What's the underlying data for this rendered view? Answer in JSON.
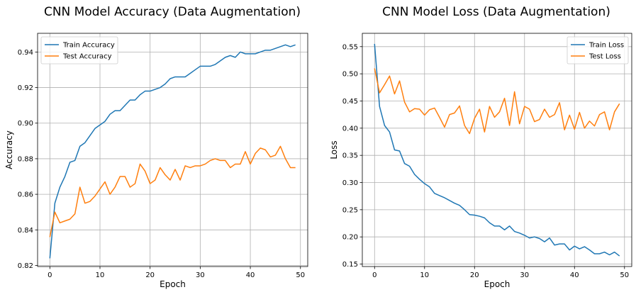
{
  "chart_data": [
    {
      "type": "line",
      "title": "CNN Model Accuracy (Data Augmentation)",
      "xlabel": "Epoch",
      "ylabel": "Accuracy",
      "xlim": [
        -2.45,
        51.45
      ],
      "ylim": [
        0.8194,
        0.9505
      ],
      "xticks": [
        0,
        10,
        20,
        30,
        40,
        50
      ],
      "yticks": [
        0.82,
        0.84,
        0.86,
        0.88,
        0.9,
        0.92,
        0.94
      ],
      "ytick_labels": [
        "0.82",
        "0.84",
        "0.86",
        "0.88",
        "0.90",
        "0.92",
        "0.94"
      ],
      "grid": true,
      "legend_position": "upper-left",
      "x": [
        0,
        1,
        2,
        3,
        4,
        5,
        6,
        7,
        8,
        9,
        10,
        11,
        12,
        13,
        14,
        15,
        16,
        17,
        18,
        19,
        20,
        21,
        22,
        23,
        24,
        25,
        26,
        27,
        28,
        29,
        30,
        31,
        32,
        33,
        34,
        35,
        36,
        37,
        38,
        39,
        40,
        41,
        42,
        43,
        44,
        45,
        46,
        47,
        48,
        49
      ],
      "series": [
        {
          "name": "Train Accuracy",
          "color": "#1f77b4",
          "values": [
            0.824,
            0.855,
            0.864,
            0.87,
            0.878,
            0.879,
            0.887,
            0.889,
            0.893,
            0.897,
            0.899,
            0.901,
            0.905,
            0.907,
            0.907,
            0.91,
            0.913,
            0.913,
            0.916,
            0.918,
            0.918,
            0.919,
            0.92,
            0.922,
            0.925,
            0.926,
            0.926,
            0.926,
            0.928,
            0.93,
            0.932,
            0.932,
            0.932,
            0.933,
            0.935,
            0.937,
            0.938,
            0.937,
            0.94,
            0.939,
            0.939,
            0.939,
            0.94,
            0.941,
            0.941,
            0.942,
            0.943,
            0.944,
            0.943,
            0.944
          ]
        },
        {
          "name": "Test Accuracy",
          "color": "#ff7f0e",
          "values": [
            0.836,
            0.85,
            0.844,
            0.845,
            0.846,
            0.849,
            0.864,
            0.855,
            0.856,
            0.859,
            0.863,
            0.867,
            0.86,
            0.864,
            0.87,
            0.87,
            0.864,
            0.866,
            0.877,
            0.873,
            0.866,
            0.868,
            0.875,
            0.871,
            0.868,
            0.874,
            0.868,
            0.876,
            0.875,
            0.876,
            0.876,
            0.877,
            0.879,
            0.88,
            0.879,
            0.879,
            0.875,
            0.877,
            0.877,
            0.884,
            0.877,
            0.883,
            0.886,
            0.885,
            0.881,
            0.882,
            0.887,
            0.88,
            0.875,
            0.875
          ]
        }
      ]
    },
    {
      "type": "line",
      "title": "CNN Model Loss (Data Augmentation)",
      "xlabel": "Epoch",
      "ylabel": "Loss",
      "xlim": [
        -2.45,
        51.45
      ],
      "ylim": [
        0.1455,
        0.5745
      ],
      "xticks": [
        0,
        10,
        20,
        30,
        40,
        50
      ],
      "yticks": [
        0.15,
        0.2,
        0.25,
        0.3,
        0.35,
        0.4,
        0.45,
        0.5,
        0.55
      ],
      "ytick_labels": [
        "0.15",
        "0.20",
        "0.25",
        "0.30",
        "0.35",
        "0.40",
        "0.45",
        "0.50",
        "0.55"
      ],
      "grid": true,
      "legend_position": "upper-right",
      "x": [
        0,
        1,
        2,
        3,
        4,
        5,
        6,
        7,
        8,
        9,
        10,
        11,
        12,
        13,
        14,
        15,
        16,
        17,
        18,
        19,
        20,
        21,
        22,
        23,
        24,
        25,
        26,
        27,
        28,
        29,
        30,
        31,
        32,
        33,
        34,
        35,
        36,
        37,
        38,
        39,
        40,
        41,
        42,
        43,
        44,
        45,
        46,
        47,
        48,
        49
      ],
      "series": [
        {
          "name": "Train Loss",
          "color": "#1f77b4",
          "values": [
            0.555,
            0.44,
            0.405,
            0.393,
            0.36,
            0.358,
            0.335,
            0.33,
            0.315,
            0.306,
            0.298,
            0.292,
            0.28,
            0.276,
            0.272,
            0.267,
            0.262,
            0.258,
            0.25,
            0.241,
            0.24,
            0.238,
            0.235,
            0.226,
            0.22,
            0.22,
            0.213,
            0.22,
            0.21,
            0.207,
            0.203,
            0.198,
            0.2,
            0.197,
            0.191,
            0.198,
            0.185,
            0.187,
            0.187,
            0.176,
            0.183,
            0.178,
            0.182,
            0.176,
            0.169,
            0.169,
            0.172,
            0.167,
            0.172,
            0.165
          ]
        },
        {
          "name": "Test Loss",
          "color": "#ff7f0e",
          "values": [
            0.51,
            0.465,
            0.48,
            0.496,
            0.463,
            0.487,
            0.448,
            0.43,
            0.436,
            0.435,
            0.424,
            0.434,
            0.437,
            0.42,
            0.402,
            0.425,
            0.428,
            0.441,
            0.405,
            0.39,
            0.418,
            0.435,
            0.393,
            0.44,
            0.42,
            0.43,
            0.455,
            0.405,
            0.467,
            0.408,
            0.44,
            0.435,
            0.412,
            0.416,
            0.435,
            0.42,
            0.425,
            0.447,
            0.397,
            0.424,
            0.398,
            0.429,
            0.4,
            0.413,
            0.404,
            0.425,
            0.43,
            0.397,
            0.43,
            0.445
          ]
        }
      ]
    }
  ]
}
